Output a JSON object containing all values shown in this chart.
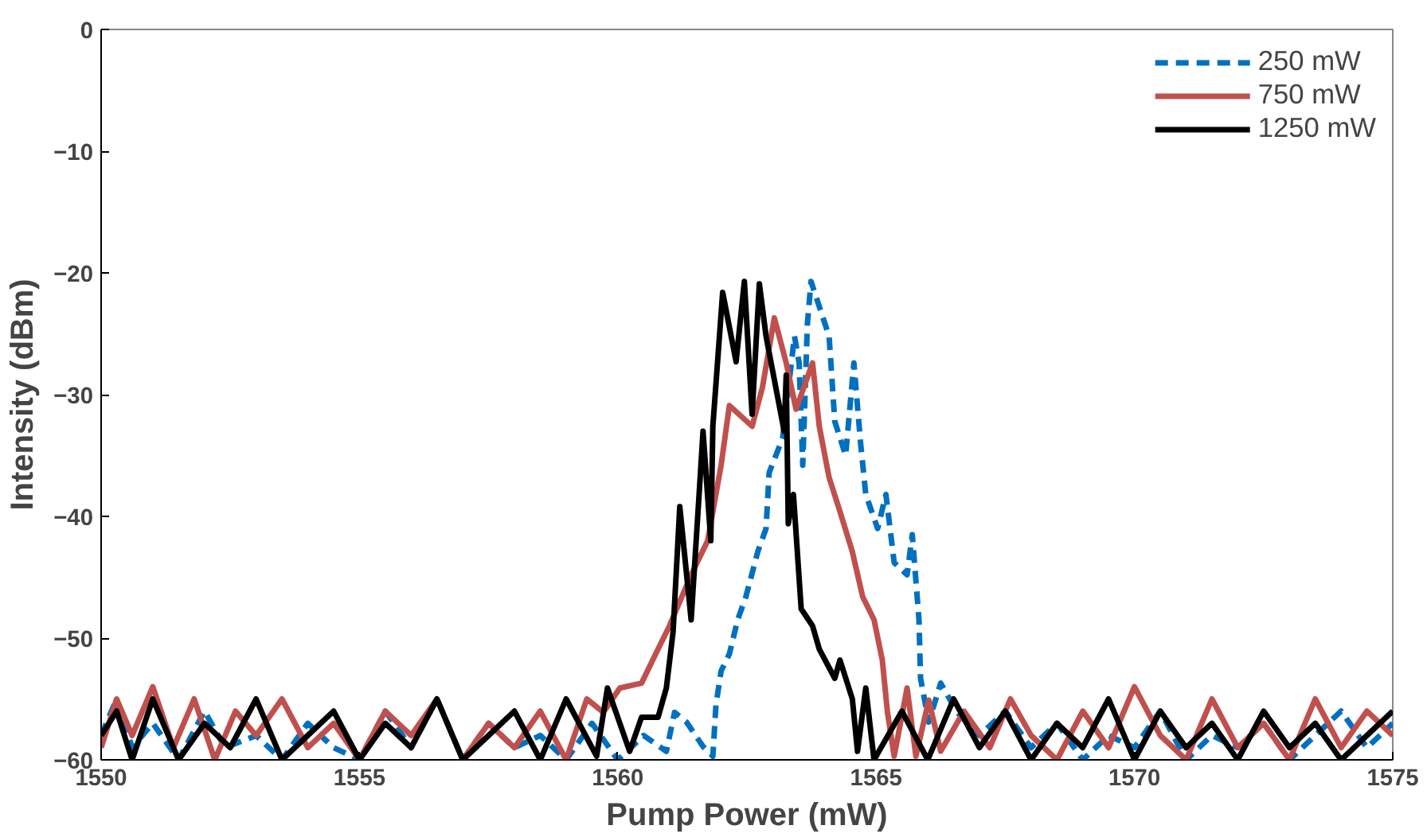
{
  "chart_data": {
    "type": "line",
    "xlabel": "Pump Power (mW)",
    "ylabel": "Intensity (dBm)",
    "xlim": [
      1550,
      1575
    ],
    "ylim": [
      -60,
      0
    ],
    "xticks": [
      1550,
      1555,
      1560,
      1565,
      1570,
      1575
    ],
    "yticks": [
      0,
      -10,
      -20,
      -30,
      -40,
      -50,
      -60
    ],
    "grid": false,
    "legend": "top right",
    "series": [
      {
        "name": "250 mW",
        "color": "#0070c0",
        "line_style": "dashed",
        "x": [
          1550,
          1550.3,
          1550.6,
          1551,
          1551.5,
          1552,
          1552.4,
          1553,
          1553.5,
          1554,
          1554.5,
          1555,
          1555.5,
          1556,
          1556.5,
          1557,
          1557.5,
          1558,
          1558.5,
          1559,
          1559.5,
          1560,
          1560.5,
          1560.94,
          1561.1,
          1561.33,
          1561.65,
          1561.84,
          1561.9,
          1562,
          1562.16,
          1562.32,
          1562.48,
          1562.71,
          1562.87,
          1562.93,
          1563.19,
          1563.42,
          1563.51,
          1563.58,
          1563.67,
          1563.74,
          1564.09,
          1564.2,
          1564.41,
          1564.57,
          1564.7,
          1564.8,
          1565.03,
          1565.19,
          1565.35,
          1565.6,
          1565.7,
          1565.83,
          1565.86,
          1566.02,
          1566.25,
          1566.57,
          1567,
          1567.5,
          1568,
          1568.5,
          1569,
          1569.5,
          1570,
          1570.5,
          1571,
          1571.5,
          1572,
          1572.5,
          1573,
          1573.5,
          1574,
          1574.5,
          1575
        ],
        "values": [
          -58,
          -55,
          -59,
          -57,
          -60,
          -56,
          -59,
          -58,
          -60,
          -57,
          -59,
          -60,
          -56,
          -59,
          -55,
          -60,
          -57,
          -59,
          -58,
          -60,
          -57,
          -60,
          -58,
          -59.3,
          -56.1,
          -56.9,
          -58.9,
          -59.7,
          -55.5,
          -52.7,
          -51.3,
          -48.5,
          -46.6,
          -42.9,
          -41,
          -36.4,
          -33.6,
          -25.2,
          -27.4,
          -35.8,
          -24.2,
          -20.7,
          -25.2,
          -32.2,
          -35,
          -27.4,
          -34,
          -38.2,
          -41,
          -38.2,
          -43.8,
          -44.8,
          -41.5,
          -48.5,
          -53.3,
          -56.9,
          -53.7,
          -56.1,
          -58,
          -56,
          -59,
          -57,
          -60,
          -58,
          -59,
          -56,
          -60,
          -58,
          -59,
          -57,
          -60,
          -58,
          -56,
          -59,
          -57
        ]
      },
      {
        "name": "750 mW",
        "color": "#c0504d",
        "line_style": "solid",
        "x": [
          1550,
          1550.3,
          1550.6,
          1551,
          1551.4,
          1551.8,
          1552.2,
          1552.6,
          1553,
          1553.5,
          1554,
          1554.5,
          1555,
          1555.5,
          1556,
          1556.5,
          1557,
          1557.5,
          1558,
          1558.5,
          1559,
          1559.4,
          1559.72,
          1560.04,
          1560.46,
          1560.78,
          1561,
          1561.42,
          1561.74,
          1562,
          1562.16,
          1562.6,
          1562.8,
          1563.03,
          1563.26,
          1563.45,
          1563.77,
          1563.9,
          1564.09,
          1564.3,
          1564.54,
          1564.74,
          1564.96,
          1565.12,
          1565.22,
          1565.35,
          1565.6,
          1565.77,
          1566.02,
          1566.25,
          1566.7,
          1567.2,
          1567.6,
          1568,
          1568.5,
          1569,
          1569.5,
          1570,
          1570.5,
          1571,
          1571.5,
          1572,
          1572.5,
          1573,
          1573.5,
          1574,
          1574.5,
          1575
        ],
        "values": [
          -59,
          -55,
          -58,
          -54,
          -59,
          -55,
          -60,
          -56,
          -58,
          -55,
          -59,
          -57,
          -60,
          -56,
          -58,
          -55,
          -60,
          -57,
          -59,
          -56,
          -60,
          -55,
          -56.1,
          -54.1,
          -53.7,
          -50.9,
          -49,
          -44.8,
          -42,
          -35.8,
          -30.9,
          -32.6,
          -29.4,
          -23.7,
          -27.4,
          -31.2,
          -27.4,
          -32.6,
          -36.8,
          -39.6,
          -42.9,
          -46.6,
          -48.5,
          -51.8,
          -56.1,
          -59.7,
          -54.1,
          -59.7,
          -55.1,
          -59.3,
          -56,
          -59,
          -55,
          -58,
          -60,
          -56,
          -59,
          -54,
          -58,
          -60,
          -55,
          -59,
          -57,
          -60,
          -55,
          -59,
          -56,
          -58
        ]
      },
      {
        "name": "1250 mW",
        "color": "#000000",
        "line_style": "solid",
        "x": [
          1550,
          1550.3,
          1550.6,
          1551,
          1551.5,
          1552,
          1552.5,
          1553,
          1553.5,
          1554,
          1554.5,
          1555,
          1555.5,
          1556,
          1556.5,
          1557,
          1557.5,
          1558,
          1558.5,
          1559,
          1559.59,
          1559.8,
          1560.23,
          1560.46,
          1560.78,
          1560.94,
          1561.07,
          1561.2,
          1561.42,
          1561.58,
          1561.65,
          1561.8,
          1561.84,
          1562.03,
          1562.29,
          1562.45,
          1562.6,
          1562.74,
          1562.87,
          1563.22,
          1563.26,
          1563.3,
          1563.4,
          1563.55,
          1563.77,
          1563.9,
          1564.2,
          1564.3,
          1564.54,
          1564.64,
          1564.8,
          1564.96,
          1565.5,
          1566,
          1566.5,
          1567,
          1567.5,
          1568,
          1568.5,
          1569,
          1569.5,
          1570,
          1570.5,
          1571,
          1571.5,
          1572,
          1572.5,
          1573,
          1573.5,
          1574,
          1574.5,
          1575
        ],
        "values": [
          -58,
          -56,
          -60,
          -55,
          -60,
          -57,
          -59,
          -55,
          -60,
          -58,
          -56,
          -60,
          -57,
          -59,
          -55,
          -60,
          -58,
          -56,
          -60,
          -55,
          -59.7,
          -54.1,
          -59.3,
          -56.5,
          -56.5,
          -54.1,
          -49.5,
          -39.2,
          -48.5,
          -37.8,
          -33,
          -42,
          -32.6,
          -21.6,
          -27.3,
          -20.7,
          -31.6,
          -20.9,
          -25.2,
          -33,
          -28.4,
          -40.6,
          -38.2,
          -47.6,
          -49,
          -50.9,
          -53.3,
          -51.8,
          -55,
          -59.3,
          -54.1,
          -60,
          -56,
          -60,
          -55,
          -59,
          -56,
          -60,
          -57,
          -59,
          -55,
          -60,
          -56,
          -59,
          -57,
          -60,
          -56,
          -59,
          -57,
          -60,
          -58,
          -56
        ]
      }
    ]
  }
}
